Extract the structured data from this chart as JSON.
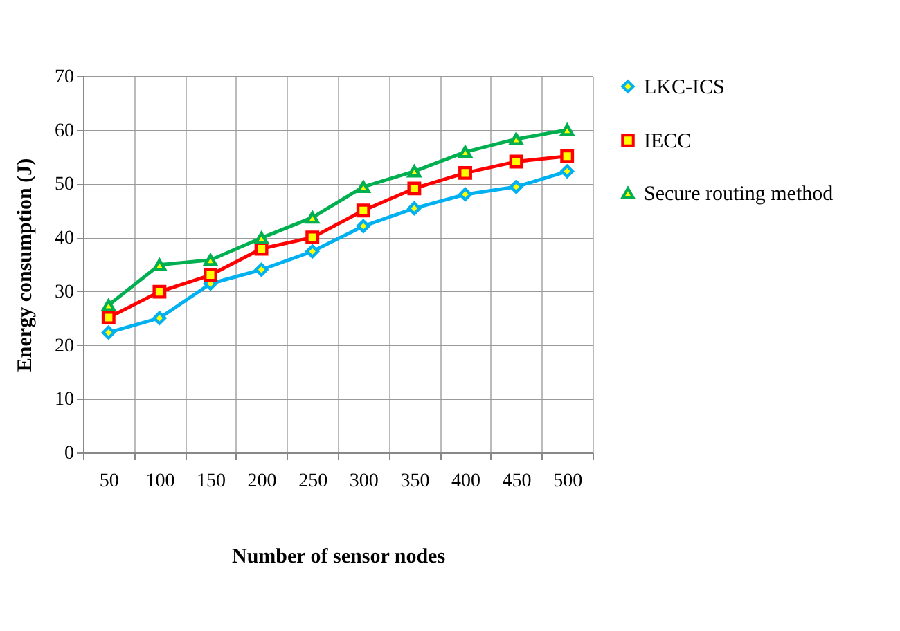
{
  "chart_data": {
    "type": "line",
    "xlabel": "Number of sensor nodes",
    "ylabel": "Energy consumption (J)",
    "categories": [
      "50",
      "100",
      "150",
      "200",
      "250",
      "300",
      "350",
      "400",
      "450",
      "500"
    ],
    "series": [
      {
        "name": "LKC-ICS",
        "color": "#00b0f0",
        "marker": "diamond",
        "values": [
          22.3,
          25,
          31.4,
          34,
          37.4,
          42.1,
          45.4,
          48,
          49.4,
          52.3
        ]
      },
      {
        "name": "IECC",
        "color": "#ff0000",
        "marker": "square",
        "values": [
          25.1,
          29.9,
          33,
          37.9,
          40,
          45,
          49.1,
          52,
          54.1,
          55.1
        ]
      },
      {
        "name": "Secure routing method",
        "color": "#00b050",
        "marker": "triangle",
        "values": [
          27.4,
          34.9,
          35.8,
          39.9,
          43.7,
          49.4,
          52.3,
          55.9,
          58.3,
          60
        ]
      }
    ],
    "ylim": [
      0,
      70
    ],
    "yticks": [
      0,
      10,
      20,
      30,
      40,
      50,
      60,
      70
    ],
    "grid": true,
    "legend": "right",
    "line_style": "solid"
  }
}
